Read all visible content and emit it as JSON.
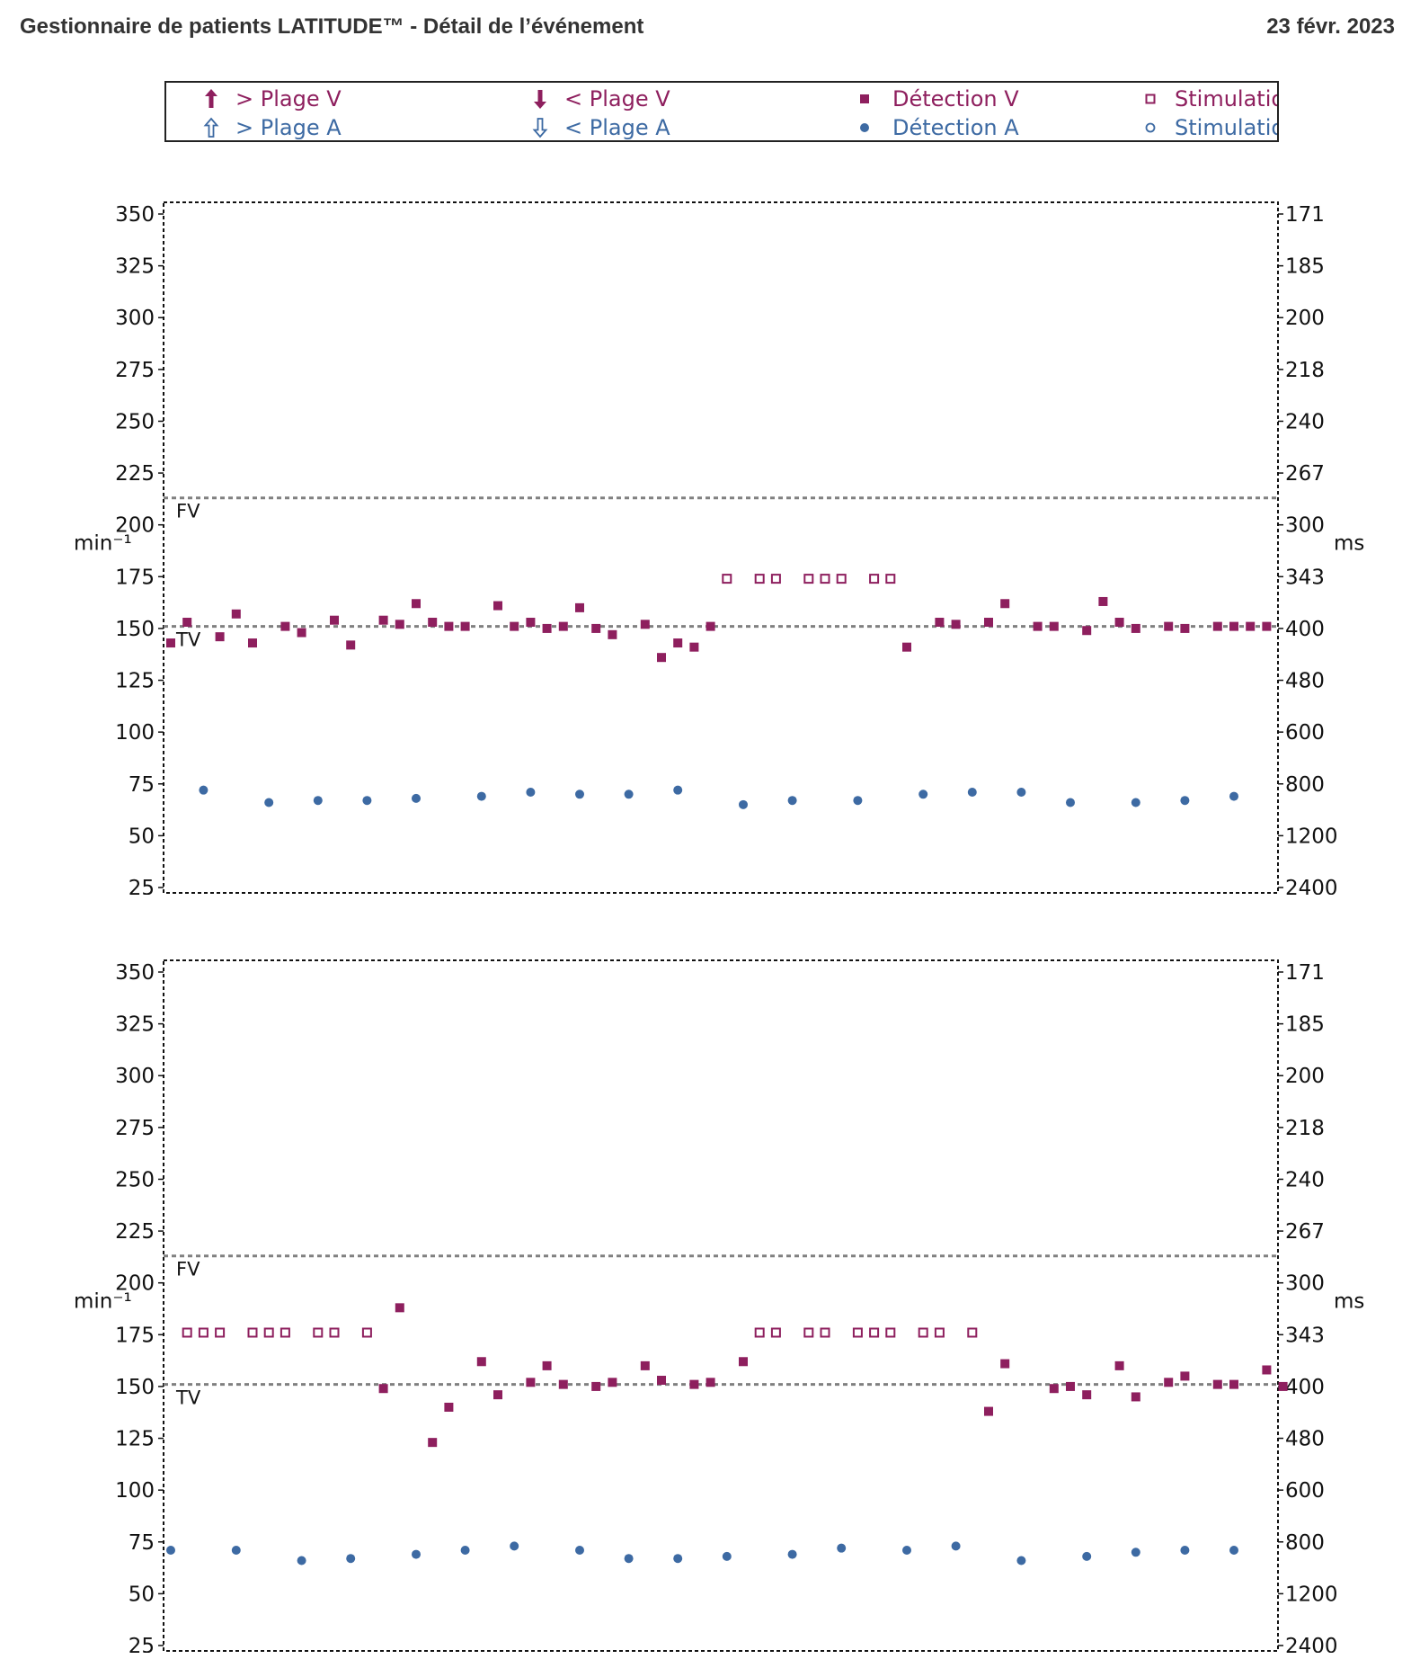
{
  "header": {
    "title": "Gestionnaire de patients LATITUDE™ - Détail de l’événement",
    "date": "23 févr. 2023"
  },
  "colors": {
    "ventricular": "#8e1f5e",
    "atrial": "#3d6aa3",
    "threshold": "#808080"
  },
  "legend": [
    {
      "label": "> Plage V",
      "symbol": "arrow-up-filled",
      "color": "#8e1f5e"
    },
    {
      "label": "< Plage V",
      "symbol": "arrow-down-filled",
      "color": "#8e1f5e"
    },
    {
      "label": "Détection V",
      "symbol": "square-filled",
      "color": "#8e1f5e"
    },
    {
      "label": "Stimulation V",
      "symbol": "square-open",
      "color": "#8e1f5e"
    },
    {
      "label": "> Plage A",
      "symbol": "arrow-up-open",
      "color": "#3d6aa3"
    },
    {
      "label": "< Plage A",
      "symbol": "arrow-down-open",
      "color": "#3d6aa3"
    },
    {
      "label": "Détection A",
      "symbol": "circle-filled",
      "color": "#3d6aa3"
    },
    {
      "label": "Stimulation A",
      "symbol": "circle-open",
      "color": "#3d6aa3"
    }
  ],
  "chart_data": [
    {
      "type": "scatter",
      "ylabel": "min⁻¹",
      "y2label": "ms",
      "ylim": [
        25,
        350
      ],
      "yticks": [
        350,
        325,
        300,
        275,
        250,
        225,
        200,
        175,
        150,
        125,
        100,
        75,
        50,
        25
      ],
      "y2ticks": [
        "171",
        "185",
        "200",
        "218",
        "240",
        "267",
        "300",
        "343",
        "400",
        "480",
        "600",
        "800",
        "1200",
        "2400"
      ],
      "thresholds": [
        {
          "name": "FV",
          "value": 213
        },
        {
          "name": "TV",
          "value": 151
        }
      ],
      "series": [
        {
          "name": "Détection V",
          "marker": "square-filled",
          "x": [
            0,
            1,
            3,
            4,
            5,
            7,
            8,
            10,
            11,
            13,
            14,
            15,
            16,
            17,
            18,
            20,
            21,
            22,
            23,
            24,
            25,
            26,
            27,
            29,
            30,
            31,
            32,
            33,
            45,
            47,
            48,
            50,
            51,
            53,
            54,
            56,
            57,
            58,
            59,
            61,
            62,
            64,
            65,
            66,
            67
          ],
          "values": [
            143,
            153,
            146,
            157,
            143,
            151,
            148,
            154,
            142,
            154,
            152,
            162,
            153,
            151,
            151,
            161,
            151,
            153,
            150,
            151,
            160,
            150,
            147,
            152,
            136,
            143,
            141,
            151,
            141,
            153,
            152,
            153,
            162,
            151,
            151,
            149,
            163,
            153,
            150,
            151,
            150,
            151,
            151,
            151,
            151
          ]
        },
        {
          "name": "Stimulation V",
          "marker": "square-open",
          "x": [
            34,
            36,
            37,
            39,
            40,
            41,
            43,
            44
          ],
          "values": [
            174,
            174,
            174,
            174,
            174,
            174,
            174,
            174
          ]
        },
        {
          "name": "Détection A",
          "marker": "circle-filled",
          "x": [
            2,
            6,
            9,
            12,
            15,
            19,
            22,
            25,
            28,
            31,
            35,
            38,
            42,
            46,
            49,
            52,
            55,
            59,
            62,
            65
          ],
          "values": [
            72,
            66,
            67,
            67,
            68,
            69,
            71,
            70,
            70,
            72,
            65,
            67,
            67,
            70,
            71,
            71,
            66,
            66,
            67,
            69
          ]
        }
      ]
    },
    {
      "type": "scatter",
      "ylabel": "min⁻¹",
      "y2label": "ms",
      "ylim": [
        25,
        350
      ],
      "yticks": [
        350,
        325,
        300,
        275,
        250,
        225,
        200,
        175,
        150,
        125,
        100,
        75,
        50,
        25
      ],
      "y2ticks": [
        "171",
        "185",
        "200",
        "218",
        "240",
        "267",
        "300",
        "343",
        "400",
        "480",
        "600",
        "800",
        "1200",
        "2400"
      ],
      "thresholds": [
        {
          "name": "FV",
          "value": 213
        },
        {
          "name": "TV",
          "value": 151
        }
      ],
      "series": [
        {
          "name": "Détection V",
          "marker": "square-filled",
          "x": [
            13,
            14,
            16,
            17,
            19,
            20,
            22,
            23,
            24,
            26,
            27,
            29,
            30,
            32,
            33,
            35,
            50,
            51,
            54,
            55,
            56,
            58,
            59,
            61,
            62,
            64,
            65,
            67,
            68
          ],
          "values": [
            149,
            188,
            123,
            140,
            162,
            146,
            152,
            160,
            151,
            150,
            152,
            160,
            153,
            151,
            152,
            162,
            138,
            161,
            149,
            150,
            146,
            160,
            145,
            152,
            155,
            151,
            151,
            158,
            150
          ]
        },
        {
          "name": "Stimulation V",
          "marker": "square-open",
          "x": [
            1,
            2,
            3,
            5,
            6,
            7,
            9,
            10,
            12,
            36,
            37,
            39,
            40,
            42,
            43,
            44,
            46,
            47,
            49
          ],
          "values": [
            176,
            176,
            176,
            176,
            176,
            176,
            176,
            176,
            176,
            176,
            176,
            176,
            176,
            176,
            176,
            176,
            176,
            176,
            176
          ]
        },
        {
          "name": "Détection A",
          "marker": "circle-filled",
          "x": [
            0,
            4,
            8,
            11,
            15,
            18,
            21,
            25,
            28,
            31,
            34,
            38,
            41,
            45,
            48,
            52,
            56,
            59,
            62,
            65
          ],
          "values": [
            71,
            71,
            66,
            67,
            69,
            71,
            73,
            71,
            67,
            67,
            68,
            69,
            72,
            71,
            73,
            66,
            68,
            70,
            71,
            71
          ]
        }
      ]
    }
  ]
}
